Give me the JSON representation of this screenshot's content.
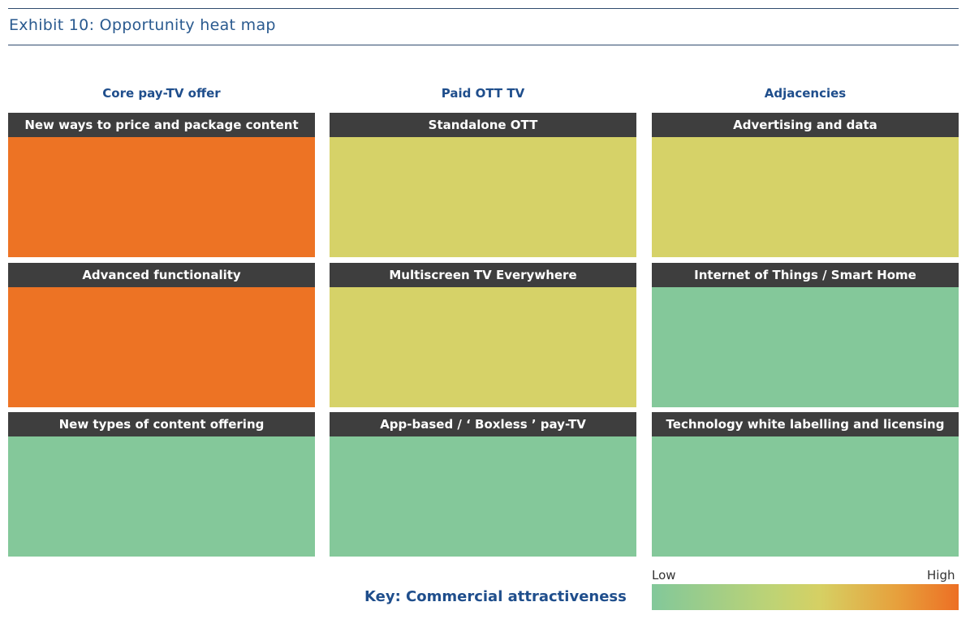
{
  "exhibit_title": "Exhibit 10: Opportunity heat map",
  "columns": [
    {
      "header": "Core pay-TV offer",
      "tiles": [
        {
          "label": "New ways to price and package content",
          "level": "high",
          "color": "#ed7324"
        },
        {
          "label": "Advanced functionality",
          "level": "high",
          "color": "#ed7324"
        },
        {
          "label": "New types of content offering",
          "level": "low",
          "color": "#84c89a"
        }
      ]
    },
    {
      "header": "Paid OTT TV",
      "tiles": [
        {
          "label": "Standalone OTT",
          "level": "medium",
          "color": "#d6d268"
        },
        {
          "label": "Multiscreen TV Everywhere",
          "level": "medium",
          "color": "#d6d268"
        },
        {
          "label": "App-based / ‘ Boxless ’ pay-TV",
          "level": "low",
          "color": "#84c89a"
        }
      ]
    },
    {
      "header": "Adjacencies",
      "tiles": [
        {
          "label": "Advertising and data",
          "level": "medium",
          "color": "#d6d268"
        },
        {
          "label": "Internet of Things / Smart Home",
          "level": "low",
          "color": "#84c89a"
        },
        {
          "label": "Technology white labelling and licensing",
          "level": "low",
          "color": "#84c89a"
        }
      ]
    }
  ],
  "key": {
    "title": "Key: Commercial attractiveness",
    "low_label": "Low",
    "high_label": "High",
    "gradient_colors": [
      "#82c89a",
      "#d6d063",
      "#ed6f24"
    ]
  }
}
